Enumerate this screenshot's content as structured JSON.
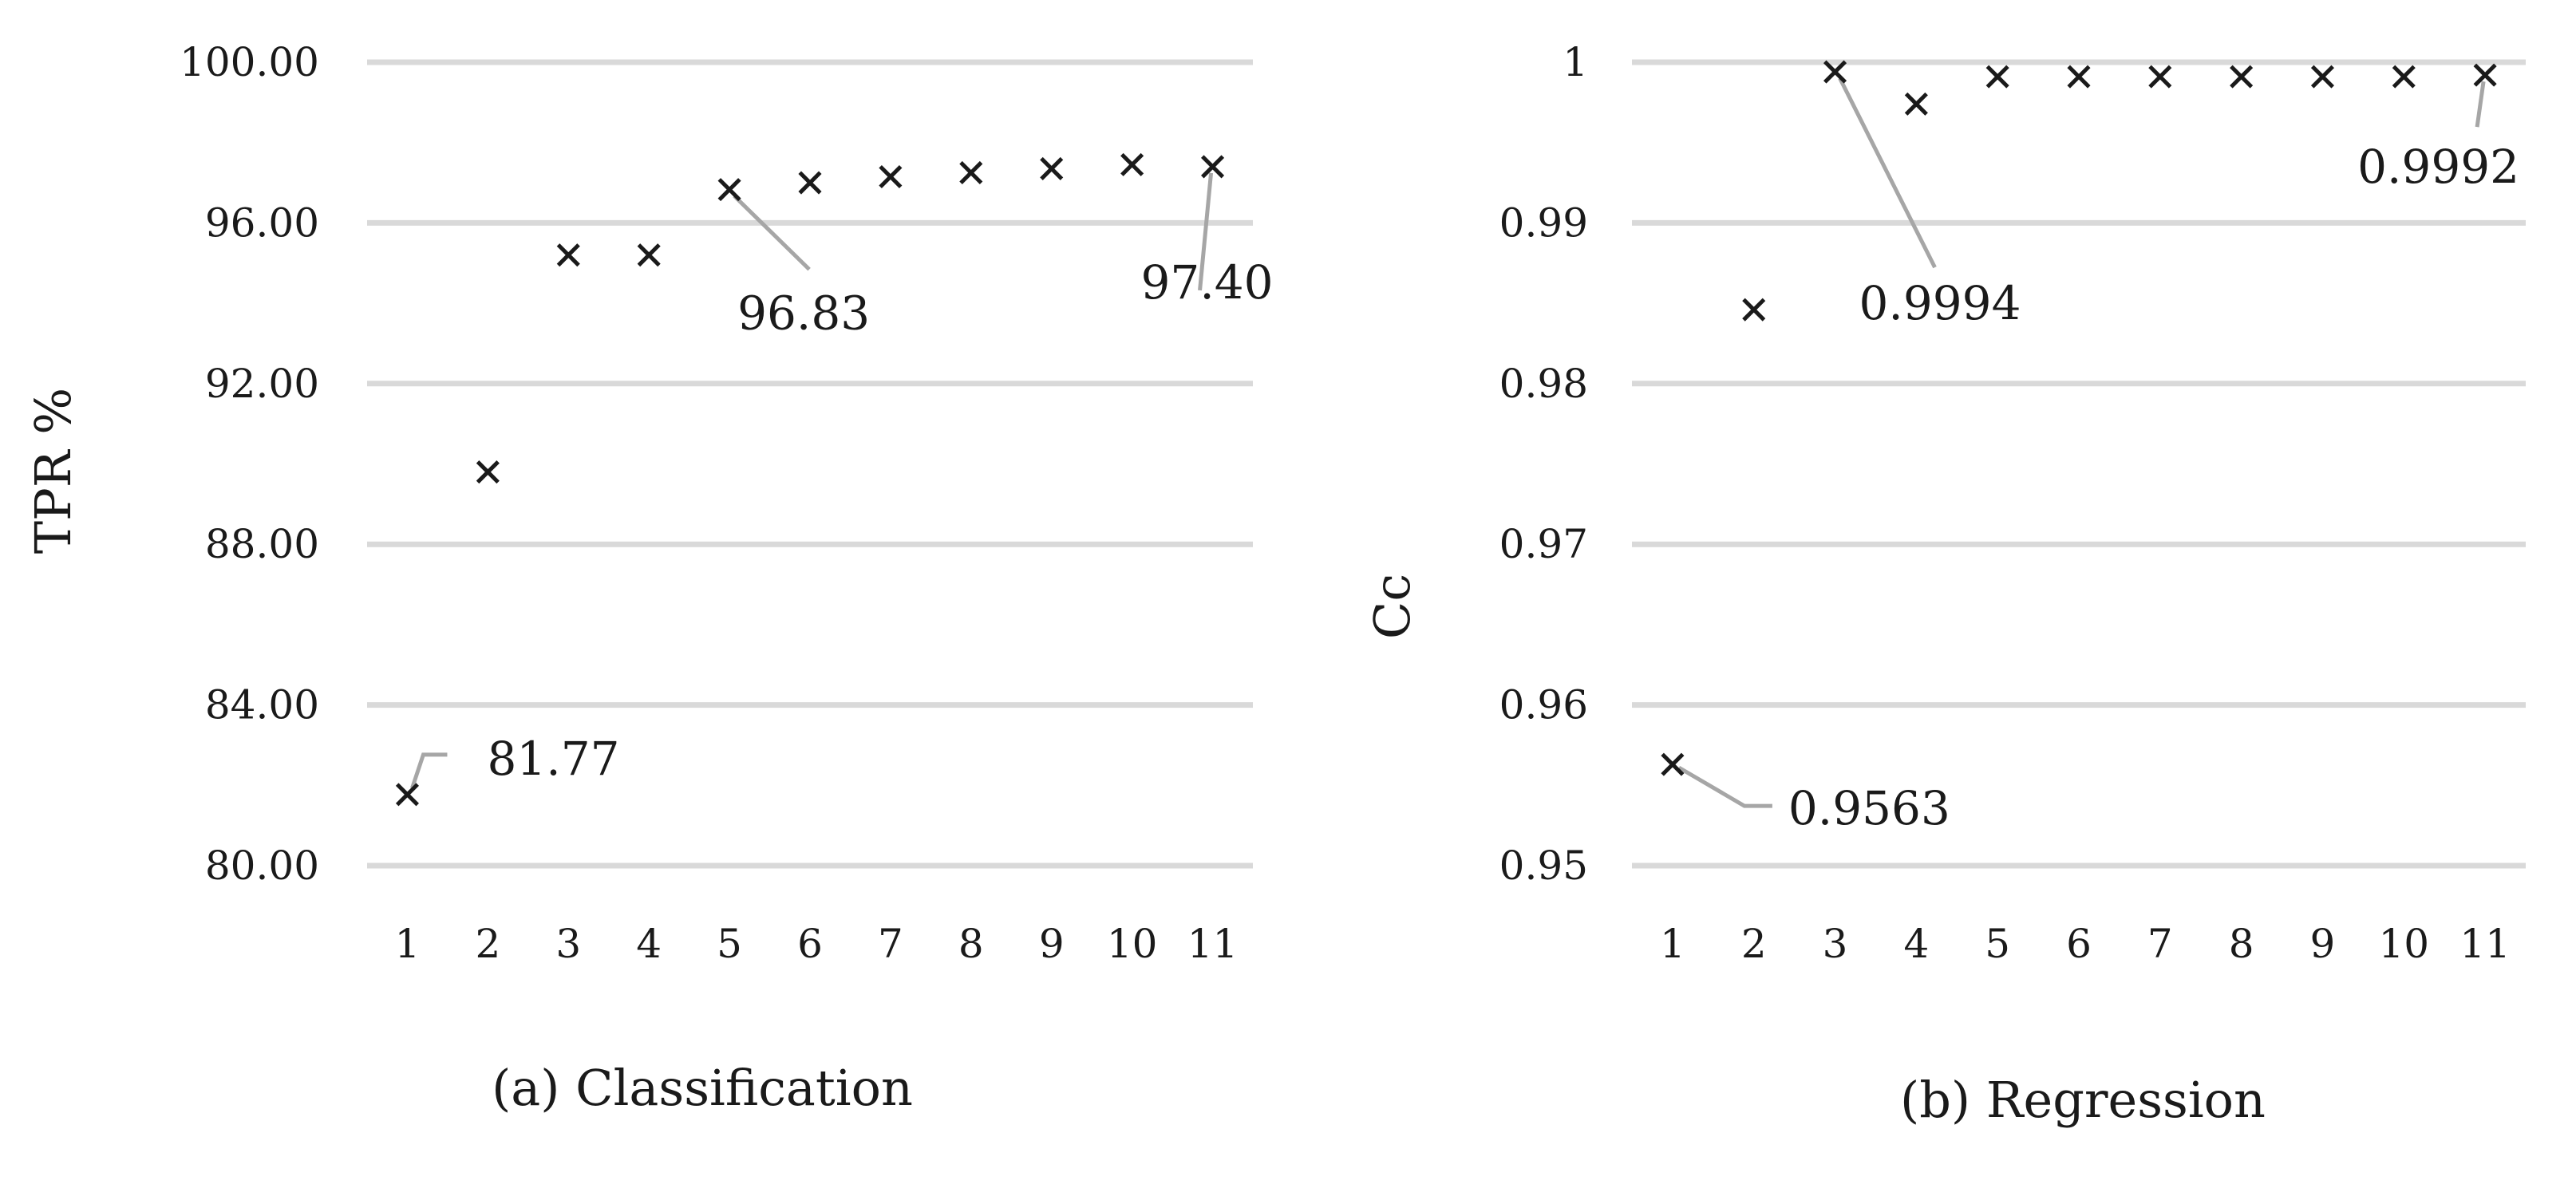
{
  "chart_data": [
    {
      "type": "scatter",
      "caption": "(a) Classification",
      "xlabel": "",
      "ylabel": "TPR %",
      "categories": [
        "1",
        "2",
        "3",
        "4",
        "5",
        "6",
        "7",
        "8",
        "9",
        "10",
        "11"
      ],
      "values": [
        81.77,
        89.8,
        95.2,
        95.2,
        96.83,
        97.0,
        97.15,
        97.25,
        97.35,
        97.45,
        97.4
      ],
      "ylim": [
        80,
        100
      ],
      "yticks": [
        "80.00",
        "84.00",
        "88.00",
        "92.00",
        "96.00",
        "100.00"
      ],
      "marker": "x",
      "grid": true,
      "annotations": [
        {
          "index": 0,
          "text": "81.77"
        },
        {
          "index": 4,
          "text": "96.83"
        },
        {
          "index": 10,
          "text": "97.40"
        }
      ]
    },
    {
      "type": "scatter",
      "caption": "(b) Regression",
      "xlabel": "",
      "ylabel": "Cc",
      "categories": [
        "1",
        "2",
        "3",
        "4",
        "5",
        "6",
        "7",
        "8",
        "9",
        "10",
        "11"
      ],
      "values": [
        0.9563,
        0.9846,
        0.9994,
        0.9974,
        0.9991,
        0.9991,
        0.9991,
        0.9991,
        0.9991,
        0.9991,
        0.9992
      ],
      "ylim": [
        0.95,
        1
      ],
      "yticks": [
        "0.95",
        "0.96",
        "0.97",
        "0.98",
        "0.99",
        "1"
      ],
      "marker": "x",
      "grid": true,
      "annotations": [
        {
          "index": 0,
          "text": "0.9563"
        },
        {
          "index": 2,
          "text": "0.9994"
        },
        {
          "index": 10,
          "text": "0.9992"
        }
      ]
    }
  ]
}
